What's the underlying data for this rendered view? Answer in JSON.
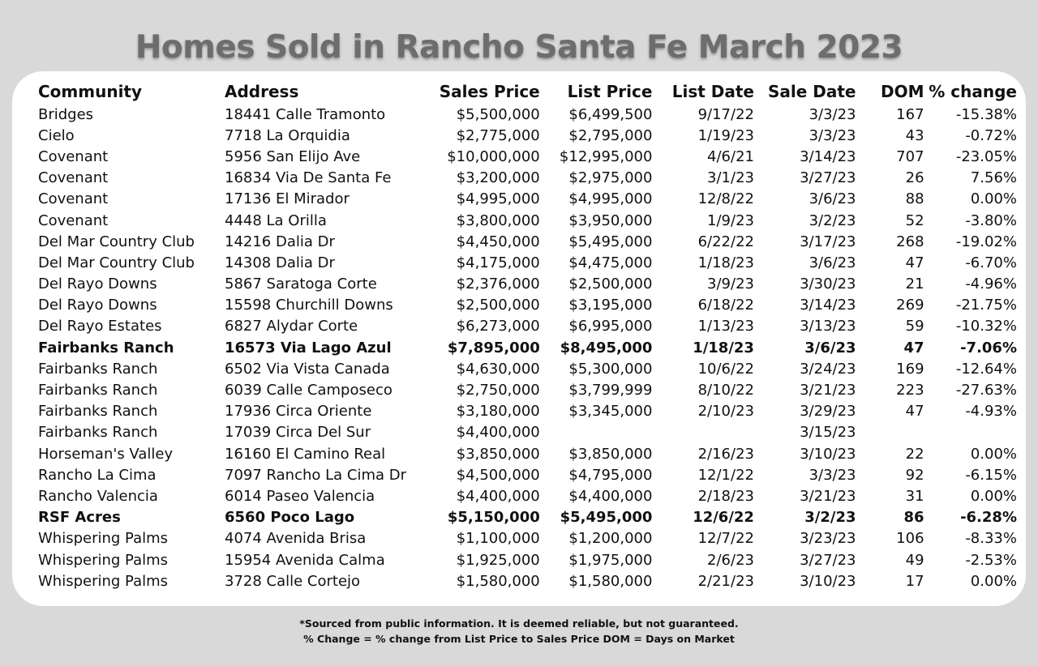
{
  "title": "Homes Sold in Rancho Santa Fe March 2023",
  "columns": {
    "community": "Community",
    "address": "Address",
    "sales_price": "Sales Price",
    "list_price": "List Price",
    "list_date": "List Date",
    "sale_date": "Sale Date",
    "dom": "DOM",
    "pct_change": "% change"
  },
  "rows": [
    {
      "community": "Bridges",
      "address": "18441 Calle Tramonto",
      "sales_price": "$5,500,000",
      "list_price": "$6,499,500",
      "list_date": "9/17/22",
      "sale_date": "3/3/23",
      "dom": "167",
      "pct_change": "-15.38%",
      "bold": false
    },
    {
      "community": "Cielo",
      "address": "7718 La Orquidia",
      "sales_price": "$2,775,000",
      "list_price": "$2,795,000",
      "list_date": "1/19/23",
      "sale_date": "3/3/23",
      "dom": "43",
      "pct_change": "-0.72%",
      "bold": false
    },
    {
      "community": "Covenant",
      "address": "5956 San Elijo Ave",
      "sales_price": "$10,000,000",
      "list_price": "$12,995,000",
      "list_date": "4/6/21",
      "sale_date": "3/14/23",
      "dom": "707",
      "pct_change": "-23.05%",
      "bold": false
    },
    {
      "community": "Covenant",
      "address": "16834  Via De Santa Fe",
      "sales_price": "$3,200,000",
      "list_price": "$2,975,000",
      "list_date": "3/1/23",
      "sale_date": "3/27/23",
      "dom": "26",
      "pct_change": "7.56%",
      "bold": false
    },
    {
      "community": "Covenant",
      "address": "17136 El Mirador",
      "sales_price": "$4,995,000",
      "list_price": "$4,995,000",
      "list_date": "12/8/22",
      "sale_date": "3/6/23",
      "dom": "88",
      "pct_change": "0.00%",
      "bold": false
    },
    {
      "community": "Covenant",
      "address": "4448 La Orilla",
      "sales_price": "$3,800,000",
      "list_price": "$3,950,000",
      "list_date": "1/9/23",
      "sale_date": "3/2/23",
      "dom": "52",
      "pct_change": "-3.80%",
      "bold": false
    },
    {
      "community": "Del Mar Country Club",
      "address": "14216 Dalia Dr",
      "sales_price": "$4,450,000",
      "list_price": "$5,495,000",
      "list_date": "6/22/22",
      "sale_date": "3/17/23",
      "dom": "268",
      "pct_change": "-19.02%",
      "bold": false
    },
    {
      "community": "Del Mar Country Club",
      "address": "14308 Dalia Dr",
      "sales_price": "$4,175,000",
      "list_price": "$4,475,000",
      "list_date": "1/18/23",
      "sale_date": "3/6/23",
      "dom": "47",
      "pct_change": "-6.70%",
      "bold": false
    },
    {
      "community": "Del Rayo Downs",
      "address": "5867 Saratoga Corte",
      "sales_price": "$2,376,000",
      "list_price": "$2,500,000",
      "list_date": "3/9/23",
      "sale_date": "3/30/23",
      "dom": "21",
      "pct_change": "-4.96%",
      "bold": false
    },
    {
      "community": "Del Rayo Downs",
      "address": "15598 Churchill Downs",
      "sales_price": "$2,500,000",
      "list_price": "$3,195,000",
      "list_date": "6/18/22",
      "sale_date": "3/14/23",
      "dom": "269",
      "pct_change": "-21.75%",
      "bold": false
    },
    {
      "community": "Del Rayo Estates",
      "address": "6827 Alydar Corte",
      "sales_price": "$6,273,000",
      "list_price": "$6,995,000",
      "list_date": "1/13/23",
      "sale_date": "3/13/23",
      "dom": "59",
      "pct_change": "-10.32%",
      "bold": false
    },
    {
      "community": "Fairbanks Ranch",
      "address": "16573 Via Lago Azul",
      "sales_price": "$7,895,000",
      "list_price": "$8,495,000",
      "list_date": "1/18/23",
      "sale_date": "3/6/23",
      "dom": "47",
      "pct_change": "-7.06%",
      "bold": true
    },
    {
      "community": "Fairbanks Ranch",
      "address": "6502 Via Vista Canada",
      "sales_price": "$4,630,000",
      "list_price": "$5,300,000",
      "list_date": "10/6/22",
      "sale_date": "3/24/23",
      "dom": "169",
      "pct_change": "-12.64%",
      "bold": false
    },
    {
      "community": "Fairbanks Ranch",
      "address": "6039 Calle Camposeco",
      "sales_price": "$2,750,000",
      "list_price": "$3,799,999",
      "list_date": "8/10/22",
      "sale_date": "3/21/23",
      "dom": "223",
      "pct_change": "-27.63%",
      "bold": false
    },
    {
      "community": "Fairbanks Ranch",
      "address": "17936 Circa Oriente",
      "sales_price": "$3,180,000",
      "list_price": "$3,345,000",
      "list_date": "2/10/23",
      "sale_date": "3/29/23",
      "dom": "47",
      "pct_change": "-4.93%",
      "bold": false
    },
    {
      "community": "Fairbanks Ranch",
      "address": "17039 Circa Del Sur",
      "sales_price": "$4,400,000",
      "list_price": "",
      "list_date": "",
      "sale_date": "3/15/23",
      "dom": "",
      "pct_change": "",
      "bold": false
    },
    {
      "community": "Horseman's Valley",
      "address": "16160 El Camino Real",
      "sales_price": "$3,850,000",
      "list_price": "$3,850,000",
      "list_date": "2/16/23",
      "sale_date": "3/10/23",
      "dom": "22",
      "pct_change": "0.00%",
      "bold": false
    },
    {
      "community": "Rancho La Cima",
      "address": "7097 Rancho La Cima Dr",
      "sales_price": "$4,500,000",
      "list_price": "$4,795,000",
      "list_date": "12/1/22",
      "sale_date": "3/3/23",
      "dom": "92",
      "pct_change": "-6.15%",
      "bold": false
    },
    {
      "community": "Rancho Valencia",
      "address": "6014 Paseo Valencia",
      "sales_price": "$4,400,000",
      "list_price": "$4,400,000",
      "list_date": "2/18/23",
      "sale_date": "3/21/23",
      "dom": "31",
      "pct_change": "0.00%",
      "bold": false
    },
    {
      "community": "RSF Acres",
      "address": "6560 Poco Lago",
      "sales_price": "$5,150,000",
      "list_price": "$5,495,000",
      "list_date": "12/6/22",
      "sale_date": "3/2/23",
      "dom": "86",
      "pct_change": "-6.28%",
      "bold": true
    },
    {
      "community": "Whispering Palms",
      "address": "4074 Avenida Brisa",
      "sales_price": "$1,100,000",
      "list_price": "$1,200,000",
      "list_date": "12/7/22",
      "sale_date": "3/23/23",
      "dom": "106",
      "pct_change": "-8.33%",
      "bold": false
    },
    {
      "community": "Whispering Palms",
      "address": "15954 Avenida Calma",
      "sales_price": "$1,925,000",
      "list_price": "$1,975,000",
      "list_date": "2/6/23",
      "sale_date": "3/27/23",
      "dom": "49",
      "pct_change": "-2.53%",
      "bold": false
    },
    {
      "community": "Whispering Palms",
      "address": "3728 Calle Cortejo",
      "sales_price": "$1,580,000",
      "list_price": "$1,580,000",
      "list_date": "2/21/23",
      "sale_date": "3/10/23",
      "dom": "17",
      "pct_change": "0.00%",
      "bold": false
    }
  ],
  "footer": {
    "line1": "*Sourced from public information. It is deemed reliable, but not guaranteed.",
    "line2": "% Change = % change from List Price to Sales Price DOM = Days on Market"
  },
  "colors": {
    "background": "#d9d9d9",
    "card": "#ffffff",
    "title": "#6d6d6d",
    "text": "#111111"
  }
}
